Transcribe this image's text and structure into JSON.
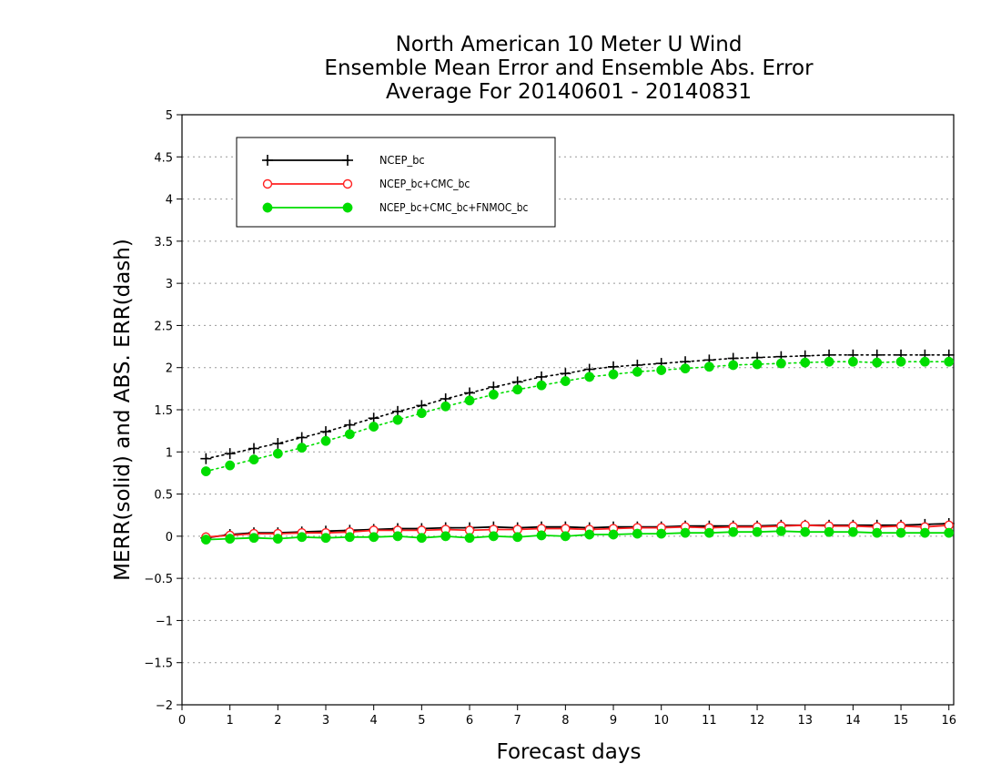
{
  "chart_data": {
    "type": "line",
    "title": [
      "North American 10 Meter U Wind",
      "Ensemble Mean Error and Ensemble Abs. Error",
      "Average For 20140601 - 20140831"
    ],
    "xlabel": "Forecast days",
    "ylabel": "MERR(solid) and ABS. ERR(dash)",
    "xlim": [
      0,
      16.1
    ],
    "ylim": [
      -2,
      5
    ],
    "xticks": [
      "0",
      "1",
      "2",
      "3",
      "4",
      "5",
      "6",
      "7",
      "8",
      "9",
      "10",
      "11",
      "12",
      "13",
      "14",
      "15",
      "16"
    ],
    "yticks": [
      "5",
      "4.5",
      "4",
      "3.5",
      "3",
      "2.5",
      "2",
      "1.5",
      "1",
      "0.5",
      "0",
      "-0.5",
      "-1",
      "-1.5",
      "-2"
    ],
    "grid": "horizontal dotted",
    "legend_position": "top-left",
    "x": [
      0.5,
      1,
      1.5,
      2,
      2.5,
      3,
      3.5,
      4,
      4.5,
      5,
      5.5,
      6,
      6.5,
      7,
      7.5,
      8,
      8.5,
      9,
      9.5,
      10,
      10.5,
      11,
      11.5,
      12,
      12.5,
      13,
      13.5,
      14,
      14.5,
      15,
      15.5,
      16
    ],
    "series": [
      {
        "name": "NCEP_bc",
        "color": "#000000",
        "marker": "plus",
        "merr": [
          -0.02,
          0.02,
          0.04,
          0.04,
          0.05,
          0.06,
          0.07,
          0.08,
          0.09,
          0.09,
          0.1,
          0.1,
          0.11,
          0.1,
          0.11,
          0.11,
          0.1,
          0.11,
          0.11,
          0.11,
          0.12,
          0.12,
          0.12,
          0.12,
          0.13,
          0.13,
          0.13,
          0.13,
          0.13,
          0.13,
          0.14,
          0.15
        ],
        "abs_err": [
          0.92,
          0.98,
          1.04,
          1.1,
          1.17,
          1.24,
          1.32,
          1.4,
          1.48,
          1.55,
          1.63,
          1.7,
          1.77,
          1.83,
          1.89,
          1.93,
          1.98,
          2.01,
          2.03,
          2.05,
          2.07,
          2.09,
          2.11,
          2.12,
          2.13,
          2.14,
          2.15,
          2.15,
          2.15,
          2.15,
          2.15,
          2.15
        ]
      },
      {
        "name": "NCEP_bc+CMC_bc",
        "color": "#ff2020",
        "marker": "open-circle",
        "merr": [
          -0.01,
          0.01,
          0.03,
          0.03,
          0.04,
          0.04,
          0.05,
          0.07,
          0.07,
          0.07,
          0.08,
          0.07,
          0.08,
          0.08,
          0.09,
          0.09,
          0.08,
          0.09,
          0.1,
          0.1,
          0.11,
          0.1,
          0.11,
          0.11,
          0.12,
          0.13,
          0.12,
          0.12,
          0.11,
          0.12,
          0.11,
          0.13
        ]
      },
      {
        "name": "NCEP_bc+CMC_bc+FNMOC_bc",
        "color": "#00dd00",
        "marker": "filled-circle",
        "merr": [
          -0.04,
          -0.03,
          -0.02,
          -0.03,
          -0.01,
          -0.02,
          -0.01,
          -0.01,
          0.0,
          -0.02,
          0.0,
          -0.02,
          0.0,
          -0.01,
          0.01,
          0.0,
          0.02,
          0.02,
          0.03,
          0.03,
          0.04,
          0.04,
          0.05,
          0.05,
          0.06,
          0.05,
          0.05,
          0.05,
          0.04,
          0.04,
          0.04,
          0.04
        ],
        "abs_err": [
          0.77,
          0.84,
          0.91,
          0.98,
          1.05,
          1.13,
          1.21,
          1.3,
          1.38,
          1.46,
          1.54,
          1.61,
          1.68,
          1.74,
          1.79,
          1.84,
          1.89,
          1.92,
          1.95,
          1.97,
          1.99,
          2.01,
          2.03,
          2.04,
          2.05,
          2.06,
          2.07,
          2.07,
          2.06,
          2.07,
          2.07,
          2.07
        ]
      }
    ]
  }
}
